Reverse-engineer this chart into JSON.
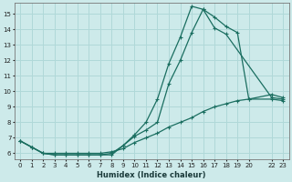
{
  "xlabel": "Humidex (Indice chaleur)",
  "bg_color": "#cdeaea",
  "grid_color": "#b0d8d8",
  "line_color": "#1a6e60",
  "xlim_min": -0.5,
  "xlim_max": 23.5,
  "ylim_min": 5.6,
  "ylim_max": 15.7,
  "xticks": [
    0,
    1,
    2,
    3,
    4,
    5,
    6,
    7,
    8,
    9,
    10,
    11,
    12,
    13,
    14,
    15,
    16,
    17,
    18,
    19,
    20,
    22,
    23
  ],
  "yticks": [
    6,
    7,
    8,
    9,
    10,
    11,
    12,
    13,
    14,
    15
  ],
  "line1_x": [
    0,
    1,
    2,
    3,
    4,
    5,
    6,
    7,
    8,
    9,
    10,
    11,
    12,
    13,
    14,
    15,
    16,
    17,
    18,
    19,
    20,
    22,
    23
  ],
  "line1_y": [
    6.8,
    6.4,
    6.0,
    5.9,
    5.9,
    5.9,
    5.9,
    5.9,
    6.0,
    6.5,
    7.2,
    8.0,
    9.5,
    11.8,
    13.5,
    15.5,
    15.3,
    14.8,
    14.2,
    13.8,
    9.5,
    9.8,
    9.6
  ],
  "line2_x": [
    0,
    1,
    2,
    3,
    4,
    5,
    6,
    7,
    8,
    9,
    10,
    11,
    12,
    13,
    14,
    15,
    16,
    17,
    18,
    22,
    23
  ],
  "line2_y": [
    6.8,
    6.4,
    6.0,
    5.9,
    5.9,
    5.9,
    5.9,
    5.9,
    5.9,
    6.5,
    7.1,
    7.5,
    8.0,
    10.5,
    12.0,
    13.8,
    15.3,
    14.1,
    13.7,
    9.6,
    9.5
  ],
  "line3_x": [
    0,
    1,
    2,
    3,
    4,
    5,
    6,
    7,
    8,
    9,
    10,
    11,
    12,
    13,
    14,
    15,
    16,
    17,
    18,
    19,
    20,
    22,
    23
  ],
  "line3_y": [
    6.8,
    6.4,
    6.0,
    6.0,
    6.0,
    6.0,
    6.0,
    6.0,
    6.1,
    6.3,
    6.7,
    7.0,
    7.3,
    7.7,
    8.0,
    8.3,
    8.7,
    9.0,
    9.2,
    9.4,
    9.5,
    9.5,
    9.4
  ]
}
